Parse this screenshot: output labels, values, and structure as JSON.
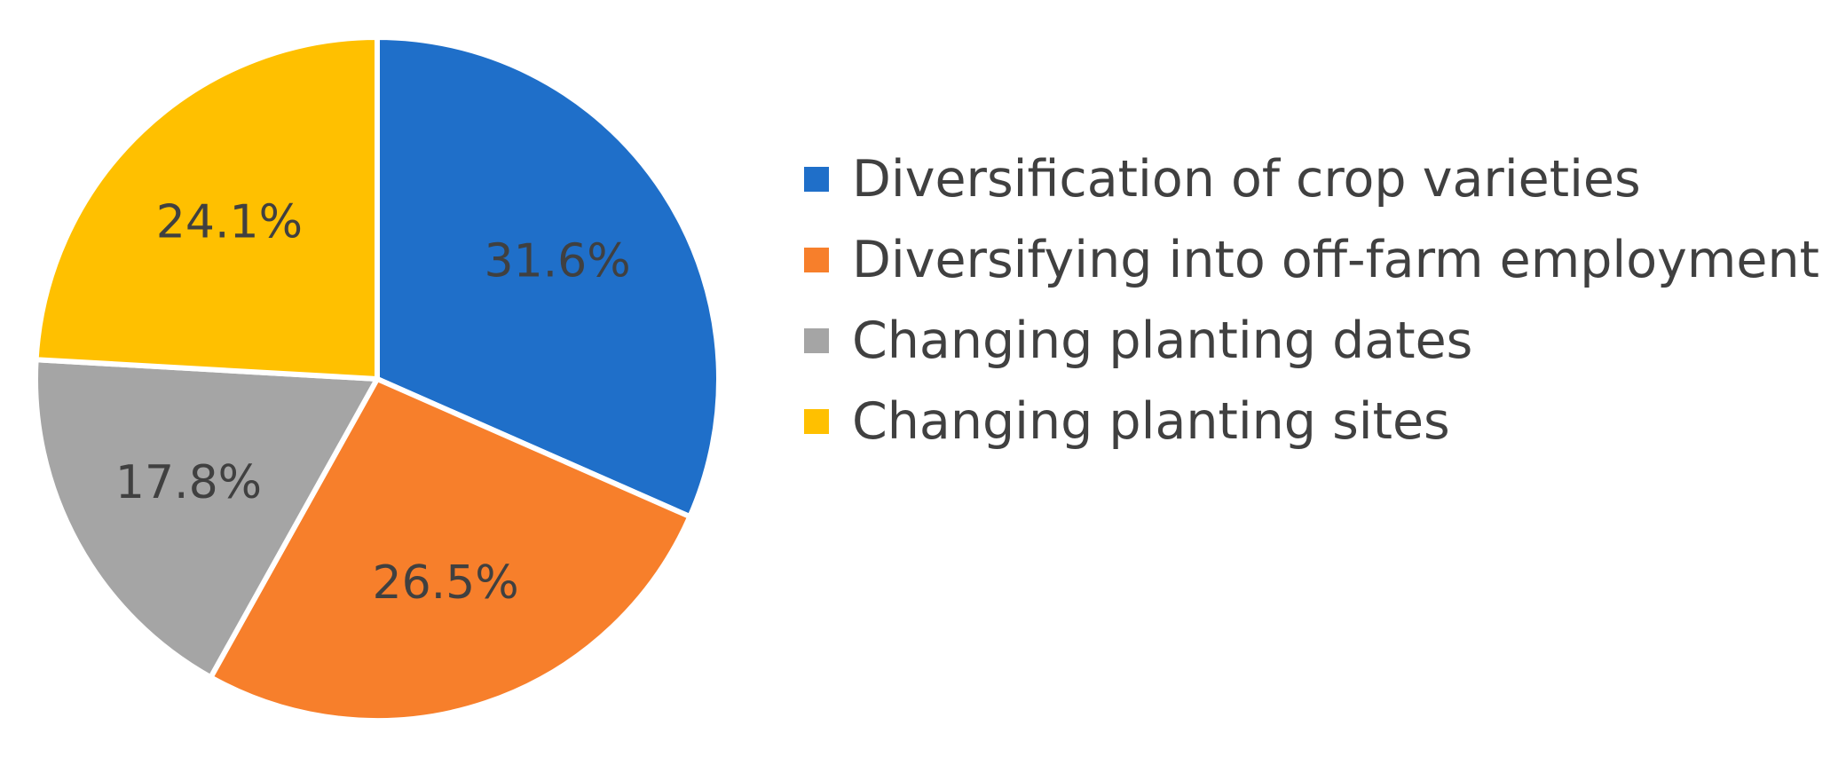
{
  "chart_data": {
    "type": "pie",
    "title": "",
    "categories": [
      "Diversification of crop varieties",
      "Diversifying into off-farm employment",
      "Changing planting dates",
      "Changing planting sites"
    ],
    "values": [
      31.6,
      26.5,
      17.8,
      24.1
    ],
    "labels": [
      "31.6%",
      "26.5%",
      "17.8%",
      "24.1%"
    ],
    "colors": [
      "#1f6fc9",
      "#f77f2b",
      "#a5a5a5",
      "#ffc000"
    ],
    "legend_position": "right"
  }
}
